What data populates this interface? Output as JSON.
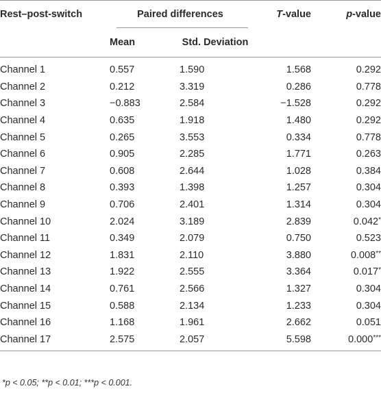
{
  "table": {
    "headers": {
      "first": "Rest–post-switch",
      "group": "Paired differences",
      "mean": "Mean",
      "sd": "Std. Deviation",
      "t_italic": "T",
      "t_rest": "-value",
      "p_italic": "p",
      "p_rest": "-value"
    },
    "rows": [
      {
        "label": "Channel 1",
        "mean": "0.557",
        "sd": "1.590",
        "t": "1.568",
        "p": "0.292",
        "sig": ""
      },
      {
        "label": "Channel 2",
        "mean": "0.212",
        "sd": "3.319",
        "t": "0.286",
        "p": "0.778",
        "sig": ""
      },
      {
        "label": "Channel 3",
        "mean": "−0.883",
        "sd": "2.584",
        "t": "−1.528",
        "p": "0.292",
        "sig": ""
      },
      {
        "label": "Channel 4",
        "mean": "0.635",
        "sd": "1.918",
        "t": "1.480",
        "p": "0.292",
        "sig": ""
      },
      {
        "label": "Channel 5",
        "mean": "0.265",
        "sd": "3.553",
        "t": "0.334",
        "p": "0.778",
        "sig": ""
      },
      {
        "label": "Channel 6",
        "mean": "0.905",
        "sd": "2.285",
        "t": "1.771",
        "p": "0.263",
        "sig": ""
      },
      {
        "label": "Channel 7",
        "mean": "0.608",
        "sd": "2.644",
        "t": "1.028",
        "p": "0.384",
        "sig": ""
      },
      {
        "label": "Channel 8",
        "mean": "0.393",
        "sd": "1.398",
        "t": "1.257",
        "p": "0.304",
        "sig": ""
      },
      {
        "label": "Channel 9",
        "mean": "0.706",
        "sd": "2.401",
        "t": "1.314",
        "p": "0.304",
        "sig": ""
      },
      {
        "label": "Channel 10",
        "mean": "2.024",
        "sd": "3.189",
        "t": "2.839",
        "p": "0.042",
        "sig": "*"
      },
      {
        "label": "Channel 11",
        "mean": "0.349",
        "sd": "2.079",
        "t": "0.750",
        "p": "0.523",
        "sig": ""
      },
      {
        "label": "Channel 12",
        "mean": "1.831",
        "sd": "2.110",
        "t": "3.880",
        "p": "0.008",
        "sig": "**"
      },
      {
        "label": "Channel 13",
        "mean": "1.922",
        "sd": "2.555",
        "t": "3.364",
        "p": "0.017",
        "sig": "*"
      },
      {
        "label": "Channel 14",
        "mean": "0.761",
        "sd": "2.566",
        "t": "1.327",
        "p": "0.304",
        "sig": ""
      },
      {
        "label": "Channel 15",
        "mean": "0.588",
        "sd": "2.134",
        "t": "1.233",
        "p": "0.304",
        "sig": ""
      },
      {
        "label": "Channel 16",
        "mean": "1.168",
        "sd": "1.961",
        "t": "2.662",
        "p": "0.051",
        "sig": ""
      },
      {
        "label": "Channel 17",
        "mean": "2.575",
        "sd": "2.057",
        "t": "5.598",
        "p": "0.000",
        "sig": "***"
      }
    ]
  },
  "footnote": "*p < 0.05; **p < 0.01; ***p < 0.001."
}
